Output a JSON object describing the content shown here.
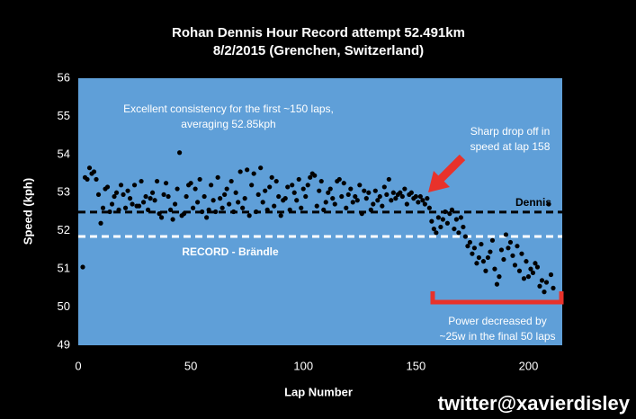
{
  "chart_data": {
    "type": "scatter",
    "title": "Rohan Dennis Hour Record attempt 52.491km",
    "subtitle": "8/2/2015 (Grenchen, Switzerland)",
    "xlabel": "Lap Number",
    "ylabel": "Speed (kph)",
    "xlim": [
      0,
      215
    ],
    "ylim": [
      49,
      56
    ],
    "xticks": [
      0,
      50,
      100,
      150,
      200
    ],
    "yticks": [
      49,
      50,
      51,
      52,
      53,
      54,
      55,
      56
    ],
    "grid": false,
    "color": "#000000",
    "background": "#5f9fd8",
    "reference_lines": [
      {
        "value": 52.491,
        "label": "Dennis",
        "color": "#000000"
      },
      {
        "value": 51.852,
        "label": "RECORD - Brändle",
        "color": "#ffffff"
      }
    ],
    "annotations": [
      [
        "Excellent consistency for the first ~150 laps,",
        "averaging 52.85kph"
      ],
      [
        "Sharp drop off in",
        "speed at lap 158"
      ],
      [
        "Power decreased by",
        "~25w in the final 50 laps"
      ]
    ],
    "credit": "twitter@xavierdisley",
    "x": [
      2,
      3,
      4,
      5,
      6,
      7,
      8,
      9,
      10,
      11,
      12,
      13,
      14,
      15,
      16,
      17,
      18,
      19,
      20,
      21,
      22,
      23,
      24,
      25,
      26,
      27,
      28,
      29,
      30,
      31,
      32,
      33,
      34,
      35,
      36,
      37,
      38,
      39,
      40,
      41,
      42,
      43,
      44,
      45,
      46,
      47,
      48,
      49,
      50,
      51,
      52,
      53,
      54,
      55,
      56,
      57,
      58,
      59,
      60,
      61,
      62,
      63,
      64,
      65,
      66,
      67,
      68,
      69,
      70,
      71,
      72,
      73,
      74,
      75,
      76,
      77,
      78,
      79,
      80,
      81,
      82,
      83,
      84,
      85,
      86,
      87,
      88,
      89,
      90,
      91,
      92,
      93,
      94,
      95,
      96,
      97,
      98,
      99,
      100,
      101,
      102,
      103,
      104,
      105,
      106,
      107,
      108,
      109,
      110,
      111,
      112,
      113,
      114,
      115,
      116,
      117,
      118,
      119,
      120,
      121,
      122,
      123,
      124,
      125,
      126,
      127,
      128,
      129,
      130,
      131,
      132,
      133,
      134,
      135,
      136,
      137,
      138,
      139,
      140,
      141,
      142,
      143,
      144,
      145,
      146,
      147,
      148,
      149,
      150,
      151,
      152,
      153,
      154,
      155,
      156,
      157,
      158,
      159,
      160,
      161,
      162,
      163,
      164,
      165,
      166,
      167,
      168,
      169,
      170,
      171,
      172,
      173,
      174,
      175,
      176,
      177,
      178,
      179,
      180,
      181,
      182,
      183,
      184,
      185,
      186,
      187,
      188,
      189,
      190,
      191,
      192,
      193,
      194,
      195,
      196,
      197,
      198,
      199,
      200,
      201,
      202,
      203,
      204,
      205,
      206,
      207,
      208,
      209,
      210,
      211
    ],
    "values": [
      51.05,
      53.4,
      53.35,
      53.65,
      53.5,
      53.55,
      53.35,
      52.95,
      52.2,
      52.6,
      53.1,
      53.15,
      52.5,
      52.7,
      52.9,
      53.0,
      52.55,
      53.2,
      52.95,
      52.6,
      53.05,
      52.85,
      52.7,
      53.2,
      52.65,
      52.65,
      53.3,
      52.75,
      52.9,
      52.55,
      52.85,
      53.0,
      52.8,
      53.3,
      52.45,
      52.35,
      52.95,
      53.25,
      52.9,
      52.55,
      52.3,
      52.7,
      53.1,
      54.05,
      52.4,
      52.45,
      52.9,
      53.2,
      53.25,
      52.6,
      53.1,
      52.75,
      53.35,
      52.5,
      52.9,
      52.35,
      52.55,
      53.2,
      52.8,
      52.5,
      53.4,
      52.85,
      52.6,
      52.95,
      53.1,
      52.7,
      53.3,
      52.5,
      53.0,
      52.75,
      53.55,
      52.6,
      52.85,
      53.6,
      52.4,
      53.2,
      53.5,
      52.5,
      52.95,
      53.65,
      52.75,
      53.05,
      52.55,
      53.15,
      53.4,
      52.65,
      53.3,
      52.9,
      52.4,
      52.8,
      52.85,
      53.15,
      52.55,
      53.2,
      53.0,
      52.8,
      53.35,
      52.6,
      53.1,
      52.9,
      53.2,
      53.4,
      53.5,
      53.45,
      52.65,
      53.05,
      53.3,
      52.55,
      52.75,
      53.0,
      53.1,
      52.85,
      52.7,
      53.3,
      53.35,
      52.9,
      53.25,
      52.6,
      52.95,
      53.1,
      52.75,
      52.9,
      52.8,
      53.2,
      52.45,
      53.05,
      52.85,
      53.0,
      52.55,
      52.7,
      53.05,
      52.8,
      52.9,
      52.65,
      53.15,
      52.95,
      53.35,
      52.8,
      53.0,
      52.85,
      52.95,
      53.0,
      52.9,
      53.1,
      52.7,
      52.95,
      53.0,
      52.85,
      52.9,
      52.75,
      52.9,
      52.8,
      52.7,
      52.85,
      52.6,
      52.25,
      52.05,
      51.95,
      52.35,
      52.1,
      52.3,
      52.5,
      52.2,
      52.45,
      52.55,
      52.05,
      52.3,
      51.95,
      52.35,
      52.1,
      51.85,
      51.6,
      51.7,
      51.4,
      51.55,
      51.15,
      51.3,
      51.65,
      51.2,
      50.95,
      51.3,
      51.45,
      51.75,
      51.0,
      50.6,
      50.8,
      51.5,
      51.25,
      51.9,
      51.55,
      51.7,
      51.35,
      51.1,
      51.6,
      50.95,
      51.4,
      50.75,
      51.2,
      50.8,
      51.0,
      50.9,
      51.15,
      51.05,
      50.55,
      50.7,
      50.4,
      50.65,
      52.7,
      50.85,
      50.5
    ]
  }
}
